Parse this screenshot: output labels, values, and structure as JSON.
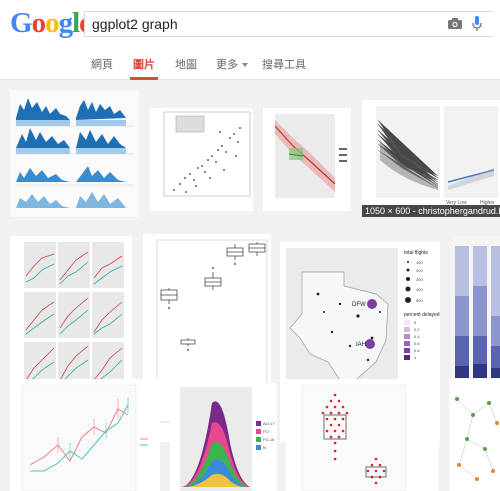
{
  "logo": {
    "text": "Google",
    "letters": [
      "G",
      "o",
      "o",
      "g",
      "l",
      "e"
    ],
    "colors": [
      "#4285f4",
      "#ea4335",
      "#fbbc05",
      "#4285f4",
      "#34a853",
      "#ea4335"
    ]
  },
  "search": {
    "query": "ggplot2 graph",
    "camera_icon": "camera-icon",
    "mic_icon": "microphone-icon"
  },
  "tabs": [
    {
      "label": "網頁",
      "active": false
    },
    {
      "label": "圖片",
      "active": true
    },
    {
      "label": "地圖",
      "active": false
    },
    {
      "label": "更多",
      "active": false
    },
    {
      "label": "搜尋工具",
      "active": false
    }
  ],
  "accent": "#dd4b39",
  "results": {
    "hovered_label": "1050 × 600 - christophergandrud.bl",
    "thumb5": {
      "x_labels": [
        "Very Low",
        "Higher"
      ]
    },
    "thumb8": {
      "legend_title": "total flights",
      "legend_values": [
        "100",
        "200",
        "300",
        "400",
        "500"
      ],
      "legend2_title": "percent delayed",
      "legend2_values": [
        "0",
        "0.2",
        "0.4",
        "0.6",
        "0.8",
        "1"
      ],
      "points": [
        "DFW",
        "IAH"
      ]
    },
    "thumb13": {
      "legend_values": [
        "AO-17",
        "FO",
        "FG-16",
        "N"
      ]
    }
  }
}
